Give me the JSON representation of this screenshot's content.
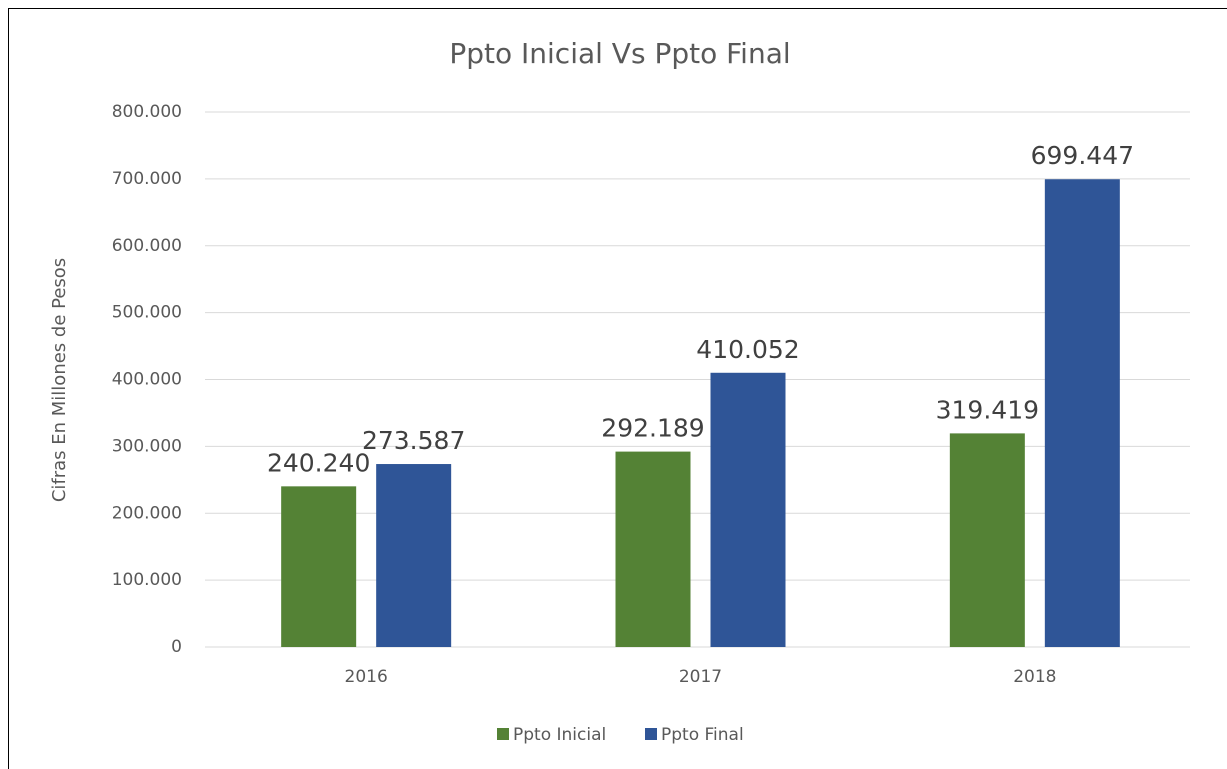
{
  "chart_data": {
    "type": "bar",
    "title": "Ppto Inicial Vs Ppto Final",
    "y_label": "Cifras En Millones de Pesos",
    "categories": [
      "2016",
      "2017",
      "2018"
    ],
    "series": [
      {
        "name": "Ppto Inicial",
        "color": "#548235",
        "values": [
          240240,
          292189,
          319419
        ],
        "value_labels": [
          "240.240",
          "292.189",
          "319.419"
        ]
      },
      {
        "name": "Ppto Final",
        "color": "#2f5597",
        "values": [
          273587,
          410052,
          699447
        ],
        "value_labels": [
          "273.587",
          "410.052",
          "699.447"
        ]
      }
    ],
    "ylim": [
      0,
      800000
    ],
    "yticks": [
      0,
      {
        "value": 100000,
        "label": "100.000"
      },
      {
        "value": 200000,
        "label": "200.000"
      },
      {
        "value": 300000,
        "label": "300.000"
      },
      {
        "value": 400000,
        "label": "400.000"
      },
      {
        "value": 500000,
        "label": "500.000"
      },
      {
        "value": 600000,
        "label": "600.000"
      },
      {
        "value": 700000,
        "label": "700.000"
      },
      {
        "value": 800000,
        "label": "800.000"
      }
    ],
    "grid": true,
    "legend": "bottom"
  }
}
